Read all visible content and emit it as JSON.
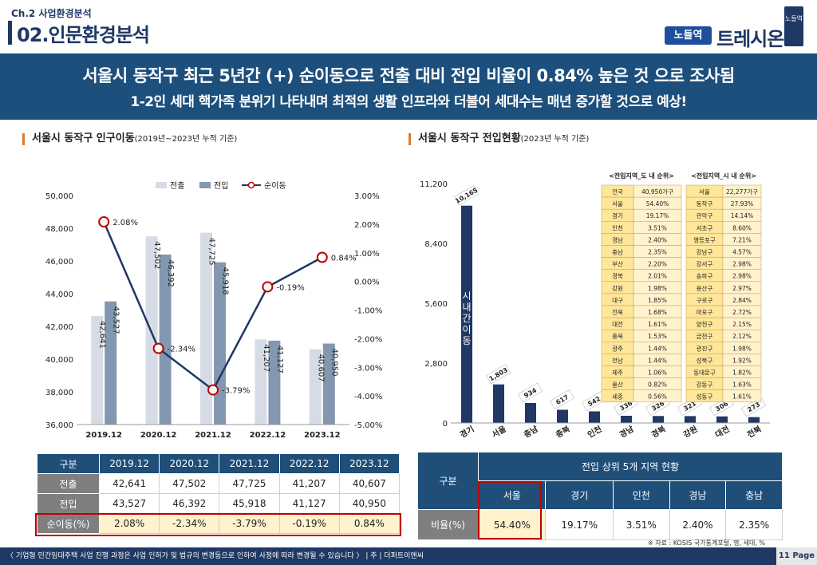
{
  "header": {
    "chapter": "Ch.2 사업환경분석",
    "title": "02.인문환경분석",
    "brand_badge": "노들역",
    "brand_name": "트레시온",
    "brand_side": "노들역"
  },
  "banner": {
    "line1": "서울시 동작구 최근 5년간 (+) 순이동으로 전출 대비 전입 비율이 0.84% 높은 것 으로 조사됨",
    "line2": "1-2인 세대 핵가족 분위기 나타내며 최적의 생활 인프라와 더불어 세대수는 매년 증가할 것으로 예상!"
  },
  "left_section": {
    "title": "서울시 동작구 인구이동",
    "subtitle": "(2019년~2023년 누적 기준)"
  },
  "right_section": {
    "title": "서울시 동작구 전입현황",
    "subtitle": "(2023년 누적 기준)"
  },
  "chart_data": [
    {
      "type": "bar",
      "title": "서울시 동작구 인구이동",
      "categories": [
        "2019.12",
        "2020.12",
        "2021.12",
        "2022.12",
        "2023.12"
      ],
      "series": [
        {
          "name": "전출",
          "values": [
            42641,
            47502,
            47725,
            41207,
            40607
          ],
          "labels": [
            "42,641",
            "47,502",
            "47,725",
            "41,207",
            "40,607"
          ],
          "color": "#d6dce5"
        },
        {
          "name": "전입",
          "values": [
            43527,
            46392,
            45918,
            41127,
            40950
          ],
          "labels": [
            "43,527",
            "46,392",
            "45,918",
            "41,127",
            "40,950"
          ],
          "color": "#8497b0"
        },
        {
          "name": "순이동",
          "type": "line",
          "axis": "right",
          "values": [
            2.08,
            -2.34,
            -3.79,
            -0.19,
            0.84
          ],
          "labels": [
            "2.08%",
            "-2.34%",
            "-3.79%",
            "-0.19%",
            "0.84%"
          ],
          "color": "#1f3864"
        }
      ],
      "ylim": [
        36000,
        50000
      ],
      "y_ticks": [
        "36,000",
        "38,000",
        "40,000",
        "42,000",
        "44,000",
        "46,000",
        "48,000",
        "50,000"
      ],
      "y2lim": [
        -5,
        3
      ],
      "y2_ticks": [
        "-5.00%",
        "-4.00%",
        "-3.00%",
        "-2.00%",
        "-1.00%",
        "0.00%",
        "1.00%",
        "2.00%",
        "3.00%"
      ],
      "legend": "top-center",
      "grid": false
    },
    {
      "type": "bar",
      "title": "서울시 동작구 전입현황",
      "categories": [
        "경기",
        "서울",
        "충남",
        "충북",
        "인천",
        "경남",
        "경북",
        "강원",
        "대전",
        "전북"
      ],
      "values": [
        10165,
        1803,
        934,
        617,
        542,
        336,
        326,
        321,
        306,
        273
      ],
      "labels": [
        "10,165",
        "1,803",
        "934",
        "617",
        "542",
        "336",
        "326",
        "321",
        "306",
        "273"
      ],
      "ylim": [
        0,
        11200
      ],
      "y_ticks": [
        "0",
        "2,800",
        "5,600",
        "8,400",
        "11,200"
      ],
      "annotation": "시내간이동",
      "color": "#1f3864",
      "tables": [
        {
          "title": "<전입지역_도 내 순위>",
          "rows": [
            [
              "전국",
              "40,950가구"
            ],
            [
              "서울",
              "54.40%"
            ],
            [
              "경기",
              "19.17%"
            ],
            [
              "인천",
              "3.51%"
            ],
            [
              "경남",
              "2.40%"
            ],
            [
              "충남",
              "2.35%"
            ],
            [
              "부산",
              "2.20%"
            ],
            [
              "경북",
              "2.01%"
            ],
            [
              "강원",
              "1.98%"
            ],
            [
              "대구",
              "1.85%"
            ],
            [
              "전북",
              "1.68%"
            ],
            [
              "대전",
              "1.61%"
            ],
            [
              "충북",
              "1.53%"
            ],
            [
              "광주",
              "1.44%"
            ],
            [
              "전남",
              "1.44%"
            ],
            [
              "제주",
              "1.06%"
            ],
            [
              "울산",
              "0.82%"
            ],
            [
              "세종",
              "0.56%"
            ]
          ]
        },
        {
          "title": "<전입지역_시 내 순위>",
          "rows": [
            [
              "서울",
              "22,277가구"
            ],
            [
              "동작구",
              "27.93%"
            ],
            [
              "관악구",
              "14.14%"
            ],
            [
              "서초구",
              "8.60%"
            ],
            [
              "영등포구",
              "7.21%"
            ],
            [
              "강남구",
              "4.57%"
            ],
            [
              "강서구",
              "2.98%"
            ],
            [
              "송파구",
              "2.98%"
            ],
            [
              "용산구",
              "2.97%"
            ],
            [
              "구로구",
              "2.84%"
            ],
            [
              "마포구",
              "2.72%"
            ],
            [
              "양천구",
              "2.15%"
            ],
            [
              "금천구",
              "2.12%"
            ],
            [
              "광진구",
              "1.98%"
            ],
            [
              "성북구",
              "1.92%"
            ],
            [
              "동대문구",
              "1.82%"
            ],
            [
              "강동구",
              "1.63%"
            ],
            [
              "성동구",
              "1.61%"
            ]
          ]
        }
      ]
    }
  ],
  "left_table": {
    "header": [
      "구분",
      "2019.12",
      "2020.12",
      "2021.12",
      "2022.12",
      "2023.12"
    ],
    "rows": [
      {
        "label": "전출",
        "cells": [
          "42,641",
          "47,502",
          "47,725",
          "41,207",
          "40,607"
        ]
      },
      {
        "label": "전입",
        "cells": [
          "43,527",
          "46,392",
          "45,918",
          "41,127",
          "40,950"
        ]
      },
      {
        "label": "순이동(%)",
        "cells": [
          "2.08%",
          "-2.34%",
          "-3.79%",
          "-0.19%",
          "0.84%"
        ]
      }
    ]
  },
  "right_table": {
    "gubun": "구분",
    "span_header": "전입 상위 5개 지역 현황",
    "columns": [
      "서울",
      "경기",
      "인천",
      "경남",
      "충남"
    ],
    "row_label": "비율(%)",
    "cells": [
      "54.40%",
      "19.17%",
      "3.51%",
      "2.40%",
      "2.35%"
    ]
  },
  "source": "※ 자료 : KOSIS 국가통계포털, 명, 세대, %",
  "footer": {
    "notice": "〈 기업형 민간임대주택 사업 진행 과정은 사업 인허가 및 법규의 변경등으로 인하여 사정에 따라 변경될 수 있습니다 〉 | 주 | 더퍼트이앤씨",
    "page": "11 Page"
  },
  "colors": {
    "navy": "#1f3864",
    "banner": "#1d4f7c",
    "accent_orange": "#e2782d",
    "highlight_red": "#c00000",
    "highlight_fill": "#fff2cc"
  }
}
